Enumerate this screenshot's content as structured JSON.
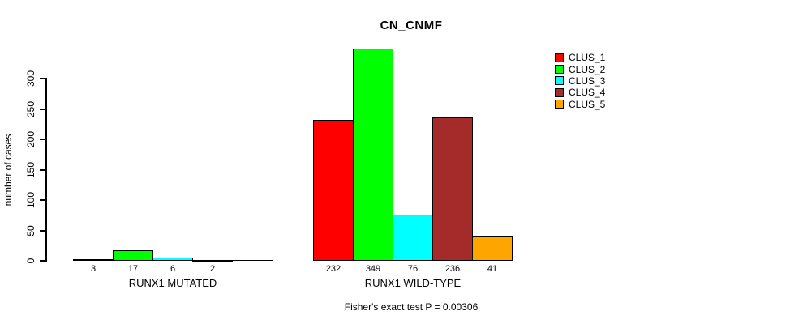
{
  "chart_data": {
    "type": "bar",
    "title": "CN_CNMF",
    "ylabel": "number of cases",
    "xlabel": "",
    "ylim": [
      0,
      300
    ],
    "yticks": [
      0,
      50,
      100,
      150,
      200,
      250,
      300
    ],
    "grid": false,
    "legend_position": "top-right",
    "categories": [
      "RUNX1 MUTATED",
      "RUNX1 WILD-TYPE"
    ],
    "series": [
      {
        "name": "CLUS_1",
        "color": "#FF0000",
        "values": [
          3,
          232
        ]
      },
      {
        "name": "CLUS_2",
        "color": "#00FF00",
        "values": [
          17,
          349
        ]
      },
      {
        "name": "CLUS_3",
        "color": "#00FFFF",
        "values": [
          6,
          76
        ]
      },
      {
        "name": "CLUS_4",
        "color": "#A52A2A",
        "values": [
          2,
          236
        ]
      },
      {
        "name": "CLUS_5",
        "color": "#FFA500",
        "values": [
          0,
          41
        ]
      }
    ],
    "bar_value_labels": [
      [
        "3",
        "17",
        "6",
        "2",
        ""
      ],
      [
        "232",
        "349",
        "76",
        "236",
        "41"
      ]
    ],
    "footer": "Fisher's exact test P = 0.00306",
    "axis_color": "#000000",
    "background": "#FFFFFF"
  }
}
